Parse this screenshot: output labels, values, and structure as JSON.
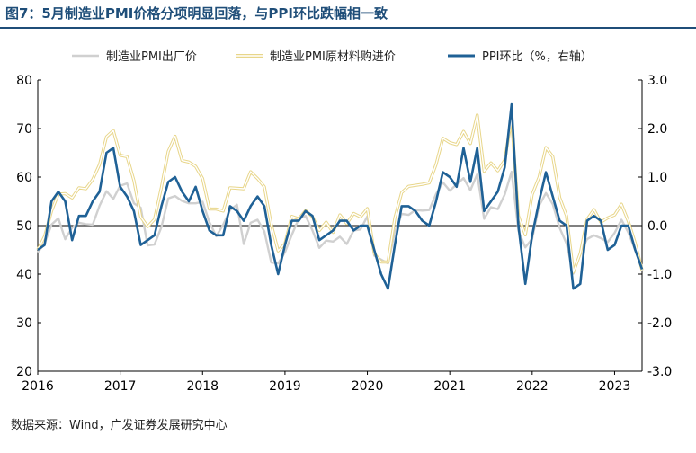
{
  "title": "图7：5月制造业PMI价格分项明显回落，与PPI环比跌幅相一致",
  "source": "数据来源：Wind，广发证券发展研究中心",
  "colors": {
    "output_price": "#d0d0d0",
    "input_price": "#e8d68a",
    "ppi_mom": "#1f6196",
    "title": "#1f4e79"
  },
  "chart_data": {
    "type": "line",
    "title": "图7：5月制造业PMI价格分项明显回落，与PPI环比跌幅相一致",
    "xlabel": "",
    "ylabel": "",
    "y2label": "",
    "x_tick_labels": [
      "2016",
      "2017",
      "2018",
      "2019",
      "2020",
      "2021",
      "2022",
      "2023"
    ],
    "x_range": [
      "2016-01",
      "2023-05"
    ],
    "ylim": [
      20,
      80
    ],
    "yticks": [
      20,
      30,
      40,
      50,
      60,
      70,
      80
    ],
    "y2lim": [
      -3.0,
      3.0
    ],
    "y2ticks": [
      "-3.0",
      "-2.0",
      "-1.0",
      "0.0",
      "1.0",
      "2.0",
      "3.0"
    ],
    "legend_position": "top",
    "grid": false,
    "series": [
      {
        "name": "制造业PMI出厂价",
        "axis": "left",
        "x": [
          "2016-01",
          "2016-02",
          "2016-03",
          "2016-04",
          "2016-05",
          "2016-06",
          "2016-07",
          "2016-08",
          "2016-09",
          "2016-10",
          "2016-11",
          "2016-12",
          "2017-01",
          "2017-02",
          "2017-03",
          "2017-04",
          "2017-05",
          "2017-06",
          "2017-07",
          "2017-08",
          "2017-09",
          "2017-10",
          "2017-11",
          "2017-12",
          "2018-01",
          "2018-02",
          "2018-03",
          "2018-04",
          "2018-05",
          "2018-06",
          "2018-07",
          "2018-08",
          "2018-09",
          "2018-10",
          "2018-11",
          "2018-12",
          "2019-01",
          "2019-02",
          "2019-03",
          "2019-04",
          "2019-05",
          "2019-06",
          "2019-07",
          "2019-08",
          "2019-09",
          "2019-10",
          "2019-11",
          "2019-12",
          "2020-01",
          "2020-02",
          "2020-03",
          "2020-04",
          "2020-05",
          "2020-06",
          "2020-07",
          "2020-08",
          "2020-09",
          "2020-10",
          "2020-11",
          "2020-12",
          "2021-01",
          "2021-02",
          "2021-03",
          "2021-04",
          "2021-05",
          "2021-06",
          "2021-07",
          "2021-08",
          "2021-09",
          "2021-10",
          "2021-11",
          "2021-12",
          "2022-01",
          "2022-02",
          "2022-03",
          "2022-04",
          "2022-05",
          "2022-06",
          "2022-07",
          "2022-08",
          "2022-09",
          "2022-10",
          "2022-11",
          "2022-12",
          "2023-01",
          "2023-02",
          "2023-03",
          "2023-04",
          "2023-05"
        ],
        "values": [
          44.5,
          46.3,
          50.2,
          51.5,
          47.2,
          49.6,
          50.6,
          50.3,
          50.2,
          54.1,
          57.1,
          55.5,
          58.2,
          58.7,
          54.6,
          53.7,
          45.9,
          46.1,
          49.7,
          55.6,
          56.1,
          55.1,
          54.6,
          54.6,
          54.9,
          50.7,
          47.8,
          50.2,
          53.2,
          54.3,
          46.2,
          50.6,
          51.2,
          48.8,
          42.4,
          42.2,
          44.5,
          48.1,
          51.4,
          52.0,
          49.0,
          45.4,
          46.9,
          46.7,
          47.7,
          46.2,
          49.0,
          49.2,
          51.9,
          43.8,
          43.0,
          42.2,
          48.7,
          52.4,
          52.2,
          53.2,
          53.1,
          53.2,
          56.5,
          58.9,
          57.2,
          58.5,
          59.8,
          57.3,
          60.6,
          51.4,
          53.8,
          53.4,
          56.4,
          61.1,
          48.9,
          45.5,
          47.3,
          54.1,
          56.7,
          54.4,
          49.5,
          46.3,
          40.1,
          44.5,
          47.2,
          48.0,
          47.4,
          46.6,
          48.5,
          51.2,
          48.6,
          44.9,
          41.6
        ]
      },
      {
        "name": "制造业PMI原材料购进价",
        "axis": "left",
        "x": [
          "2016-01",
          "2016-02",
          "2016-03",
          "2016-04",
          "2016-05",
          "2016-06",
          "2016-07",
          "2016-08",
          "2016-09",
          "2016-10",
          "2016-11",
          "2016-12",
          "2017-01",
          "2017-02",
          "2017-03",
          "2017-04",
          "2017-05",
          "2017-06",
          "2017-07",
          "2017-08",
          "2017-09",
          "2017-10",
          "2017-11",
          "2017-12",
          "2018-01",
          "2018-02",
          "2018-03",
          "2018-04",
          "2018-05",
          "2018-06",
          "2018-07",
          "2018-08",
          "2018-09",
          "2018-10",
          "2018-11",
          "2018-12",
          "2019-01",
          "2019-02",
          "2019-03",
          "2019-04",
          "2019-05",
          "2019-06",
          "2019-07",
          "2019-08",
          "2019-09",
          "2019-10",
          "2019-11",
          "2019-12",
          "2020-01",
          "2020-02",
          "2020-03",
          "2020-04",
          "2020-05",
          "2020-06",
          "2020-07",
          "2020-08",
          "2020-09",
          "2020-10",
          "2020-11",
          "2020-12",
          "2021-01",
          "2021-02",
          "2021-03",
          "2021-04",
          "2021-05",
          "2021-06",
          "2021-07",
          "2021-08",
          "2021-09",
          "2021-10",
          "2021-11",
          "2021-12",
          "2022-01",
          "2022-02",
          "2022-03",
          "2022-04",
          "2022-05",
          "2022-06",
          "2022-07",
          "2022-08",
          "2022-09",
          "2022-10",
          "2022-11",
          "2022-12",
          "2023-01",
          "2023-02",
          "2023-03",
          "2023-04",
          "2023-05"
        ],
        "values": [
          45.0,
          47.8,
          53.0,
          56.5,
          56.6,
          55.7,
          57.8,
          57.6,
          59.5,
          62.6,
          68.3,
          69.6,
          64.5,
          64.2,
          59.3,
          51.8,
          49.8,
          51.3,
          57.9,
          65.3,
          68.4,
          63.4,
          63.1,
          62.2,
          59.7,
          53.4,
          53.4,
          53.0,
          57.8,
          57.7,
          57.6,
          61.1,
          59.7,
          58.0,
          50.3,
          44.8,
          46.3,
          51.9,
          51.4,
          53.1,
          51.8,
          49.0,
          50.7,
          48.6,
          52.2,
          50.4,
          52.5,
          51.8,
          53.5,
          44.3,
          42.5,
          42.5,
          51.6,
          56.8,
          58.1,
          58.3,
          58.5,
          58.8,
          62.6,
          68.0,
          67.1,
          66.7,
          69.4,
          66.9,
          72.8,
          61.2,
          62.9,
          61.3,
          63.5,
          72.1,
          52.0,
          48.1,
          56.4,
          60.0,
          66.1,
          64.2,
          55.8,
          52.0,
          40.4,
          44.3,
          51.3,
          53.3,
          50.7,
          51.6,
          52.2,
          54.4,
          50.9,
          46.4,
          40.8
        ]
      },
      {
        "name": "PPI环比（%，右轴）",
        "axis": "right",
        "x": [
          "2016-01",
          "2016-02",
          "2016-03",
          "2016-04",
          "2016-05",
          "2016-06",
          "2016-07",
          "2016-08",
          "2016-09",
          "2016-10",
          "2016-11",
          "2016-12",
          "2017-01",
          "2017-02",
          "2017-03",
          "2017-04",
          "2017-05",
          "2017-06",
          "2017-07",
          "2017-08",
          "2017-09",
          "2017-10",
          "2017-11",
          "2017-12",
          "2018-01",
          "2018-02",
          "2018-03",
          "2018-04",
          "2018-05",
          "2018-06",
          "2018-07",
          "2018-08",
          "2018-09",
          "2018-10",
          "2018-11",
          "2018-12",
          "2019-01",
          "2019-02",
          "2019-03",
          "2019-04",
          "2019-05",
          "2019-06",
          "2019-07",
          "2019-08",
          "2019-09",
          "2019-10",
          "2019-11",
          "2019-12",
          "2020-01",
          "2020-02",
          "2020-03",
          "2020-04",
          "2020-05",
          "2020-06",
          "2020-07",
          "2020-08",
          "2020-09",
          "2020-10",
          "2020-11",
          "2020-12",
          "2021-01",
          "2021-02",
          "2021-03",
          "2021-04",
          "2021-05",
          "2021-06",
          "2021-07",
          "2021-08",
          "2021-09",
          "2021-10",
          "2021-11",
          "2021-12",
          "2022-01",
          "2022-02",
          "2022-03",
          "2022-04",
          "2022-05",
          "2022-06",
          "2022-07",
          "2022-08",
          "2022-09",
          "2022-10",
          "2022-11",
          "2022-12",
          "2023-01",
          "2023-02",
          "2023-03",
          "2023-04",
          "2023-05"
        ],
        "values": [
          -0.5,
          -0.4,
          0.5,
          0.7,
          0.5,
          -0.3,
          0.2,
          0.2,
          0.5,
          0.7,
          1.5,
          1.6,
          0.8,
          0.6,
          0.3,
          -0.4,
          -0.3,
          -0.2,
          0.4,
          0.9,
          1.0,
          0.7,
          0.5,
          0.8,
          0.3,
          -0.1,
          -0.2,
          -0.2,
          0.4,
          0.3,
          0.1,
          0.4,
          0.6,
          0.4,
          -0.4,
          -1.0,
          -0.4,
          0.1,
          0.1,
          0.3,
          0.2,
          -0.3,
          -0.2,
          -0.1,
          0.1,
          0.1,
          -0.1,
          0.0,
          0.0,
          -0.5,
          -1.0,
          -1.3,
          -0.4,
          0.4,
          0.4,
          0.3,
          0.1,
          0.0,
          0.5,
          1.1,
          1.0,
          0.8,
          1.6,
          0.9,
          1.6,
          0.3,
          0.5,
          0.7,
          1.2,
          2.5,
          0.0,
          -1.2,
          -0.2,
          0.5,
          1.1,
          0.6,
          0.1,
          0.0,
          -1.3,
          -1.2,
          0.1,
          0.2,
          0.1,
          -0.5,
          -0.4,
          0.0,
          0.0,
          -0.5,
          -0.9
        ]
      }
    ]
  }
}
